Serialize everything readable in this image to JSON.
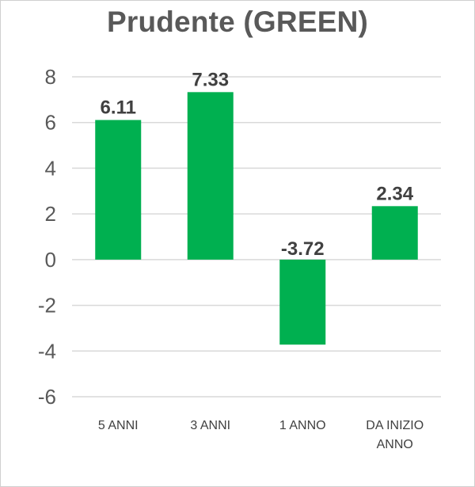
{
  "chart_data": {
    "type": "bar",
    "title": "Prudente (GREEN)",
    "categories": [
      [
        "5 ANNI"
      ],
      [
        "3 ANNI"
      ],
      [
        "1 ANNO"
      ],
      [
        "DA INIZIO",
        "ANNO"
      ]
    ],
    "values": [
      6.11,
      7.33,
      -3.72,
      2.34
    ],
    "data_labels": [
      "6.11",
      "7.33",
      "-3.72",
      "2.34"
    ],
    "ylim": [
      -6,
      8
    ],
    "yticks": [
      8,
      6,
      4,
      2,
      0,
      -2,
      -4,
      -6
    ],
    "grid": true,
    "legend": "none",
    "bar_color": "#00B050"
  }
}
